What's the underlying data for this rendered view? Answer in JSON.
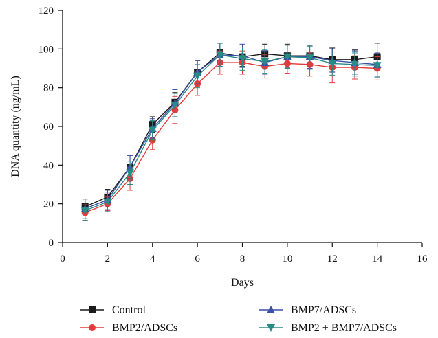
{
  "chart_data": {
    "type": "line",
    "title": "",
    "xlabel": "Days",
    "ylabel": "DNA quantity (ng/mL)",
    "xlim": [
      0,
      16
    ],
    "ylim": [
      0,
      120
    ],
    "x_ticks": [
      0,
      2,
      4,
      6,
      8,
      10,
      12,
      14,
      16
    ],
    "y_ticks": [
      0,
      20,
      40,
      60,
      80,
      100,
      120
    ],
    "grid": false,
    "legend_position": "bottom",
    "x": [
      1,
      2,
      3,
      4,
      5,
      6,
      7,
      8,
      9,
      10,
      11,
      12,
      13,
      14
    ],
    "series": [
      {
        "name": "Control",
        "color": "#1a1a1a",
        "marker": "square",
        "values": [
          18.5,
          23.5,
          39,
          61,
          72.5,
          88,
          98,
          96,
          97.5,
          96.5,
          96.5,
          94.5,
          94.5,
          96
        ],
        "errors": [
          4,
          4,
          6,
          4,
          5,
          6,
          5,
          5,
          5,
          6,
          5,
          6,
          5,
          7
        ]
      },
      {
        "name": "BMP2/ADSCs",
        "color": "#e23b3b",
        "marker": "circle",
        "values": [
          15.5,
          20,
          33,
          53,
          68.5,
          82,
          93,
          93,
          91,
          92.5,
          92,
          90.5,
          90.5,
          90
        ],
        "errors": [
          4,
          3.5,
          6,
          5,
          7,
          6,
          6,
          6,
          6,
          5,
          6,
          8,
          6,
          6
        ]
      },
      {
        "name": "BMP7/ADSCs",
        "color": "#3a4fa8",
        "marker": "triangle-up",
        "values": [
          17.5,
          22,
          39,
          59,
          72,
          88,
          97,
          96.5,
          93,
          96,
          96,
          94,
          93,
          92
        ],
        "errors": [
          5,
          5,
          6,
          5,
          7,
          6,
          6,
          6,
          6,
          6,
          6,
          6,
          6,
          6
        ]
      },
      {
        "name": "BMP2 + BMP7/ADSCs",
        "color": "#2a8a86",
        "marker": "triangle-down",
        "values": [
          16.5,
          21,
          36,
          58,
          71,
          86,
          97,
          95,
          93.5,
          96,
          95.5,
          92.5,
          92,
          91.5
        ],
        "errors": [
          5,
          5,
          6,
          5,
          6,
          6,
          6,
          6,
          6,
          6,
          6,
          6,
          6,
          6
        ]
      }
    ]
  }
}
